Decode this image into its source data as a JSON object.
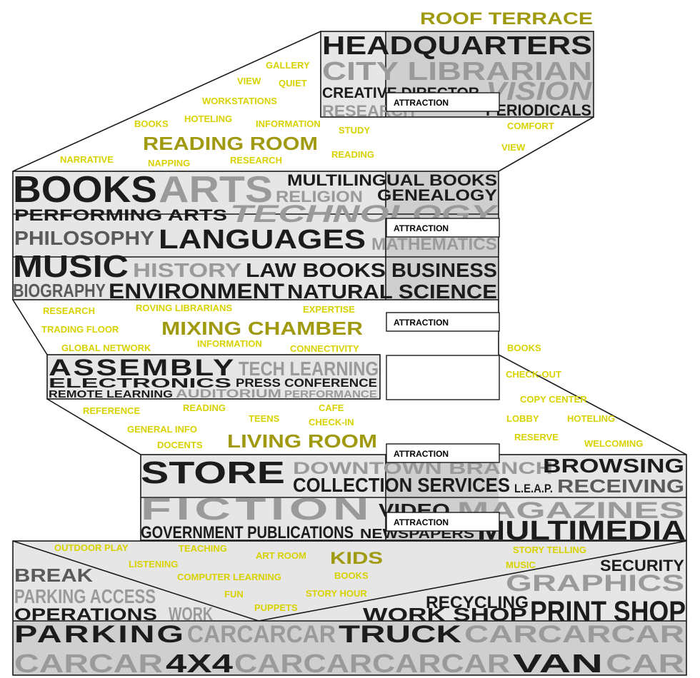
{
  "colors": {
    "yellow": "#d8d200",
    "olive": "#a09a10",
    "dark": "#1c1c1c",
    "mid": "#5a5a5a",
    "light": "#9a9a9a",
    "band_light": "#e6e6e6",
    "band_dark": "#cfcfcf",
    "outline": "#1a1a1a"
  },
  "attraction_label": "ATTRACTION",
  "zones": [
    {
      "id": "roof-terrace",
      "title": "ROOF TERRACE",
      "words": []
    },
    {
      "id": "reading-room",
      "title": "READING ROOM",
      "words": [
        "GALLERY",
        "VIEW",
        "QUIET",
        "WORKSTATIONS",
        "BOOKS",
        "HOTELING",
        "INFORMATION",
        "STUDY",
        "NARRATIVE",
        "NAPPING",
        "RESEARCH",
        "READING",
        "COMFORT",
        "VIEW"
      ]
    },
    {
      "id": "mixing-chamber",
      "title": "MIXING CHAMBER",
      "words": [
        "RESEARCH",
        "ROVING LIBRARIANS",
        "EXPERTISE",
        "TRADING FLOOR",
        "GLOBAL NETWORK",
        "INFORMATION",
        "CONNECTIVITY"
      ]
    },
    {
      "id": "living-room",
      "title": "LIVING ROOM",
      "words": [
        "REFERENCE",
        "READING",
        "CAFE",
        "TEENS",
        "CHECK-IN",
        "GENERAL INFO",
        "DOCENTS",
        "BOOKS",
        "CHECK-OUT",
        "COPY CENTER",
        "LOBBY",
        "HOTELING",
        "RESERVE",
        "WELCOMING"
      ]
    },
    {
      "id": "kids",
      "title": "KIDS",
      "words": [
        "OUTDOOR PLAY",
        "TEACHING",
        "ART ROOM",
        "LISTENING",
        "BOOKS",
        "COMPUTER LEARNING",
        "STORY HOUR",
        "FUN",
        "PUPPETS",
        "STORY TELLING",
        "MUSIC"
      ]
    }
  ],
  "blocks": [
    {
      "id": "headquarters",
      "rows": [
        [
          "HEADQUARTERS"
        ],
        [
          "CITY LIBRARIAN"
        ],
        [
          "CREATIVE DIRECTOR",
          "VISION"
        ],
        [
          "RESEARCH",
          "PERIODICALS"
        ]
      ]
    },
    {
      "id": "book-spiral",
      "rows": [
        [
          "BOOKS",
          "ARTS",
          "MULTILINGUAL BOOKS"
        ],
        [
          "RELIGION",
          "GENEALOGY"
        ],
        [
          "PERFORMING ARTS",
          "TECHNOLOGY"
        ],
        [
          "PHILOSOPHY",
          "LANGUAGES",
          "MATHEMATICS"
        ],
        [
          "MUSIC",
          "HISTORY",
          "LAW BOOKS",
          "BUSINESS"
        ],
        [
          "BIOGRAPHY",
          "ENVIRONMENT",
          "NATURAL SCIENCE"
        ]
      ]
    },
    {
      "id": "assembly",
      "rows": [
        [
          "ASSEMBLY",
          "TECH LEARNING"
        ],
        [
          "ELECTRONICS",
          "PRESS CONFERENCE"
        ],
        [
          "REMOTE LEARNING",
          "AUDITORIUM",
          "PERFORMANCE"
        ]
      ]
    },
    {
      "id": "store",
      "rows": [
        [
          "STORE",
          "DOWNTOWN BRANCH",
          "BROWSING"
        ],
        [
          "COLLECTION SERVICES",
          "L.E.A.P.",
          "RECEIVING"
        ],
        [
          "FICTION",
          "VIDEO",
          "MAGAZINES"
        ],
        [
          "GOVERNMENT PUBLICATIONS",
          "NEWSPAPERS",
          "MULTIMEDIA"
        ]
      ]
    },
    {
      "id": "parking",
      "rows": [
        [
          "BREAK",
          "SECURITY"
        ],
        [
          "PARKING ACCESS",
          "GRAPHICS"
        ],
        [
          "RECYCLING"
        ],
        [
          "OPERATIONS",
          "WORK",
          "WORK SHOP",
          "PRINT SHOP"
        ],
        [
          "PARKING",
          "CARCARCAR",
          "TRUCK",
          "CARCARCAR"
        ],
        [
          "CARCAR",
          "4X4",
          "CARCARCARCAR",
          "VAN",
          "CAR"
        ]
      ]
    }
  ]
}
